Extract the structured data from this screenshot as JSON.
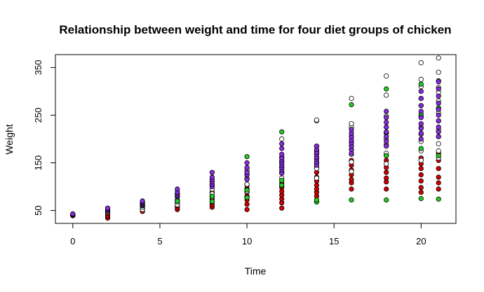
{
  "chart_data": {
    "type": "scatter",
    "title": "Relationship between weight and time for four diet groups of chicken",
    "xlabel": "Time",
    "ylabel": "Weight",
    "xlim": [
      -1,
      22
    ],
    "ylim": [
      23,
      377
    ],
    "x_ticks": [
      0,
      5,
      10,
      15,
      20
    ],
    "y_ticks": [
      50,
      150,
      250,
      350
    ],
    "grid": false,
    "legend": "none",
    "series": [
      {
        "color": "#d40000",
        "points": [
          [
            0,
            40
          ],
          [
            0,
            42
          ],
          [
            0,
            41
          ],
          [
            0,
            39
          ],
          [
            2,
            34
          ],
          [
            2,
            37
          ],
          [
            2,
            40
          ],
          [
            2,
            44
          ],
          [
            2,
            47
          ],
          [
            4,
            48
          ],
          [
            4,
            52
          ],
          [
            4,
            55
          ],
          [
            4,
            58
          ],
          [
            4,
            61
          ],
          [
            6,
            52
          ],
          [
            6,
            56
          ],
          [
            6,
            60
          ],
          [
            6,
            65
          ],
          [
            6,
            71
          ],
          [
            8,
            57
          ],
          [
            8,
            62
          ],
          [
            8,
            68
          ],
          [
            8,
            74
          ],
          [
            8,
            80
          ],
          [
            8,
            88
          ],
          [
            10,
            52
          ],
          [
            10,
            63
          ],
          [
            10,
            72
          ],
          [
            10,
            80
          ],
          [
            10,
            88
          ],
          [
            10,
            96
          ],
          [
            10,
            103
          ],
          [
            12,
            55
          ],
          [
            12,
            66
          ],
          [
            12,
            74
          ],
          [
            12,
            82
          ],
          [
            12,
            90
          ],
          [
            12,
            98
          ],
          [
            12,
            108
          ],
          [
            14,
            80
          ],
          [
            14,
            88
          ],
          [
            14,
            95
          ],
          [
            14,
            103
          ],
          [
            14,
            112
          ],
          [
            14,
            120
          ],
          [
            14,
            130
          ],
          [
            14,
            140
          ],
          [
            16,
            95
          ],
          [
            16,
            108
          ],
          [
            16,
            115
          ],
          [
            16,
            125
          ],
          [
            16,
            135
          ],
          [
            16,
            145
          ],
          [
            16,
            155
          ],
          [
            18,
            95
          ],
          [
            18,
            110
          ],
          [
            18,
            118
          ],
          [
            18,
            130
          ],
          [
            18,
            140
          ],
          [
            18,
            155
          ],
          [
            18,
            165
          ],
          [
            20,
            88
          ],
          [
            20,
            98
          ],
          [
            20,
            112
          ],
          [
            20,
            125
          ],
          [
            20,
            138
          ],
          [
            20,
            148
          ],
          [
            20,
            160
          ],
          [
            21,
            95
          ],
          [
            21,
            108
          ],
          [
            21,
            120
          ],
          [
            21,
            138
          ],
          [
            21,
            155
          ],
          [
            21,
            170
          ]
        ]
      },
      {
        "color": "#ffffff",
        "points": [
          [
            0,
            41
          ],
          [
            0,
            42
          ],
          [
            2,
            47
          ],
          [
            2,
            50
          ],
          [
            4,
            52
          ],
          [
            4,
            57
          ],
          [
            4,
            60
          ],
          [
            6,
            62
          ],
          [
            6,
            68
          ],
          [
            6,
            73
          ],
          [
            6,
            79
          ],
          [
            8,
            78
          ],
          [
            8,
            85
          ],
          [
            8,
            95
          ],
          [
            8,
            102
          ],
          [
            10,
            90
          ],
          [
            10,
            105
          ],
          [
            10,
            118
          ],
          [
            10,
            125
          ],
          [
            10,
            135
          ],
          [
            12,
            102
          ],
          [
            12,
            118
          ],
          [
            12,
            130
          ],
          [
            12,
            140
          ],
          [
            12,
            152
          ],
          [
            12,
            162
          ],
          [
            12,
            200
          ],
          [
            14,
            118
          ],
          [
            14,
            138
          ],
          [
            14,
            150
          ],
          [
            14,
            162
          ],
          [
            14,
            175
          ],
          [
            14,
            185
          ],
          [
            14,
            238
          ],
          [
            14,
            240
          ],
          [
            16,
            132
          ],
          [
            16,
            152
          ],
          [
            16,
            168
          ],
          [
            16,
            178
          ],
          [
            16,
            192
          ],
          [
            16,
            225
          ],
          [
            16,
            232
          ],
          [
            16,
            285
          ],
          [
            18,
            148
          ],
          [
            18,
            170
          ],
          [
            18,
            188
          ],
          [
            18,
            200
          ],
          [
            18,
            212
          ],
          [
            18,
            225
          ],
          [
            18,
            248
          ],
          [
            18,
            292
          ],
          [
            18,
            332
          ],
          [
            20,
            155
          ],
          [
            20,
            175
          ],
          [
            20,
            195
          ],
          [
            20,
            210
          ],
          [
            20,
            225
          ],
          [
            20,
            248
          ],
          [
            20,
            270
          ],
          [
            20,
            285
          ],
          [
            20,
            310
          ],
          [
            20,
            325
          ],
          [
            20,
            360
          ],
          [
            21,
            160
          ],
          [
            21,
            175
          ],
          [
            21,
            190
          ],
          [
            21,
            205
          ],
          [
            21,
            220
          ],
          [
            21,
            238
          ],
          [
            21,
            255
          ],
          [
            21,
            280
          ],
          [
            21,
            298
          ],
          [
            21,
            308
          ],
          [
            21,
            340
          ],
          [
            21,
            370
          ]
        ]
      },
      {
        "color": "#22cc22",
        "points": [
          [
            0,
            41
          ],
          [
            2,
            51
          ],
          [
            4,
            61
          ],
          [
            6,
            70
          ],
          [
            8,
            69
          ],
          [
            8,
            80
          ],
          [
            10,
            77
          ],
          [
            10,
            93
          ],
          [
            10,
            163
          ],
          [
            12,
            103
          ],
          [
            12,
            113
          ],
          [
            12,
            215
          ],
          [
            14,
            68
          ],
          [
            14,
            72
          ],
          [
            14,
            170
          ],
          [
            16,
            72
          ],
          [
            16,
            205
          ],
          [
            16,
            272
          ],
          [
            18,
            72
          ],
          [
            18,
            165
          ],
          [
            18,
            212
          ],
          [
            18,
            305
          ],
          [
            20,
            75
          ],
          [
            20,
            180
          ],
          [
            20,
            252
          ],
          [
            20,
            315
          ],
          [
            21,
            74
          ],
          [
            21,
            165
          ],
          [
            21,
            265
          ],
          [
            21,
            322
          ]
        ]
      },
      {
        "color": "#8a2be2",
        "points": [
          [
            0,
            41
          ],
          [
            0,
            42
          ],
          [
            0,
            43
          ],
          [
            2,
            49
          ],
          [
            2,
            51
          ],
          [
            2,
            53
          ],
          [
            2,
            55
          ],
          [
            4,
            62
          ],
          [
            4,
            64
          ],
          [
            4,
            66
          ],
          [
            4,
            68
          ],
          [
            4,
            70
          ],
          [
            6,
            80
          ],
          [
            6,
            83
          ],
          [
            6,
            86
          ],
          [
            6,
            89
          ],
          [
            6,
            95
          ],
          [
            8,
            100
          ],
          [
            8,
            105
          ],
          [
            8,
            110
          ],
          [
            8,
            115
          ],
          [
            8,
            120
          ],
          [
            8,
            130
          ],
          [
            10,
            115
          ],
          [
            10,
            125
          ],
          [
            10,
            130
          ],
          [
            10,
            140
          ],
          [
            10,
            150
          ],
          [
            12,
            128
          ],
          [
            12,
            135
          ],
          [
            12,
            140
          ],
          [
            12,
            145
          ],
          [
            12,
            150
          ],
          [
            12,
            155
          ],
          [
            12,
            160
          ],
          [
            12,
            168
          ],
          [
            12,
            180
          ],
          [
            12,
            190
          ],
          [
            14,
            145
          ],
          [
            14,
            152
          ],
          [
            14,
            158
          ],
          [
            14,
            162
          ],
          [
            14,
            168
          ],
          [
            14,
            172
          ],
          [
            14,
            178
          ],
          [
            14,
            185
          ],
          [
            16,
            170
          ],
          [
            16,
            178
          ],
          [
            16,
            185
          ],
          [
            16,
            192
          ],
          [
            16,
            198
          ],
          [
            16,
            205
          ],
          [
            16,
            212
          ],
          [
            16,
            220
          ],
          [
            18,
            185
          ],
          [
            18,
            195
          ],
          [
            18,
            205
          ],
          [
            18,
            215
          ],
          [
            18,
            225
          ],
          [
            18,
            235
          ],
          [
            18,
            245
          ],
          [
            18,
            258
          ],
          [
            20,
            200
          ],
          [
            20,
            212
          ],
          [
            20,
            222
          ],
          [
            20,
            232
          ],
          [
            20,
            245
          ],
          [
            20,
            258
          ],
          [
            20,
            270
          ],
          [
            20,
            285
          ],
          [
            20,
            300
          ],
          [
            21,
            205
          ],
          [
            21,
            215
          ],
          [
            21,
            225
          ],
          [
            21,
            238
          ],
          [
            21,
            250
          ],
          [
            21,
            262
          ],
          [
            21,
            275
          ],
          [
            21,
            290
          ],
          [
            21,
            305
          ],
          [
            21,
            320
          ]
        ]
      }
    ]
  }
}
